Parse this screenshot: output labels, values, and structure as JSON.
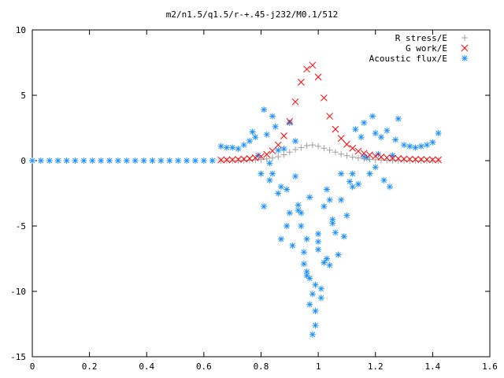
{
  "chart_data": {
    "type": "scatter",
    "title": "m2/n1.5/q1.5/r-+.45-j232/M0.1/512",
    "xlabel": "",
    "ylabel": "",
    "xlim": [
      0,
      1.6
    ],
    "ylim": [
      -15,
      10
    ],
    "xticks": [
      0,
      0.2,
      0.4,
      0.6,
      0.8,
      1,
      1.2,
      1.4,
      1.6
    ],
    "xtick_labels": [
      "0",
      "0.2",
      "0.4",
      "0.6",
      "0.8",
      "1",
      "1.2",
      "1.4",
      "1.6"
    ],
    "yticks": [
      -15,
      -10,
      -5,
      0,
      5,
      10
    ],
    "ytick_labels": [
      "-15",
      "-10",
      "-5",
      "0",
      "5",
      "10"
    ],
    "grid": false,
    "legend_position": "top-right",
    "series": [
      {
        "name": "R stress/E",
        "marker": "plus",
        "color": "#a0a0a0",
        "x": [
          0.66,
          0.68,
          0.7,
          0.72,
          0.74,
          0.76,
          0.78,
          0.8,
          0.82,
          0.84,
          0.86,
          0.88,
          0.9,
          0.92,
          0.94,
          0.96,
          0.98,
          1.0,
          1.02,
          1.04,
          1.06,
          1.08,
          1.1,
          1.12,
          1.14,
          1.16,
          1.18,
          1.2,
          1.22,
          1.24,
          1.26,
          1.28,
          1.3,
          1.32,
          1.34,
          1.36,
          1.38,
          1.4,
          1.42
        ],
        "y": [
          0.0,
          0.0,
          0.0,
          0.01,
          0.02,
          0.03,
          0.05,
          0.08,
          0.13,
          0.2,
          0.3,
          0.45,
          0.65,
          0.85,
          1.0,
          1.15,
          1.2,
          1.1,
          0.95,
          0.8,
          0.65,
          0.5,
          0.38,
          0.28,
          0.2,
          0.14,
          0.1,
          0.07,
          0.05,
          0.03,
          0.02,
          0.01,
          0.01,
          0.0,
          0.0,
          0.0,
          0.0,
          0.0,
          0.0
        ]
      },
      {
        "name": "G work/E",
        "marker": "cross",
        "color": "#ff0000",
        "x": [
          0.66,
          0.68,
          0.7,
          0.72,
          0.74,
          0.76,
          0.78,
          0.8,
          0.82,
          0.84,
          0.86,
          0.88,
          0.9,
          0.92,
          0.94,
          0.96,
          0.98,
          1.0,
          1.02,
          1.04,
          1.06,
          1.08,
          1.1,
          1.12,
          1.14,
          1.16,
          1.18,
          1.2,
          1.22,
          1.24,
          1.26,
          1.28,
          1.3,
          1.32,
          1.34,
          1.36,
          1.38,
          1.4,
          1.42
        ],
        "y": [
          0.05,
          0.06,
          0.07,
          0.09,
          0.12,
          0.16,
          0.22,
          0.32,
          0.48,
          0.75,
          1.2,
          1.9,
          3.0,
          4.5,
          6.0,
          7.0,
          7.3,
          6.4,
          4.8,
          3.4,
          2.4,
          1.7,
          1.25,
          0.95,
          0.72,
          0.56,
          0.44,
          0.35,
          0.28,
          0.23,
          0.19,
          0.16,
          0.13,
          0.11,
          0.1,
          0.09,
          0.08,
          0.07,
          0.06
        ]
      },
      {
        "name": "Acoustic flux/E",
        "marker": "star",
        "color": "#1e90ff",
        "x": [
          0.0,
          0.03,
          0.06,
          0.09,
          0.12,
          0.15,
          0.18,
          0.21,
          0.24,
          0.27,
          0.3,
          0.33,
          0.36,
          0.39,
          0.42,
          0.45,
          0.48,
          0.51,
          0.54,
          0.57,
          0.6,
          0.63,
          0.66,
          0.68,
          0.7,
          0.72,
          0.74,
          0.76,
          0.77,
          0.78,
          0.79,
          0.8,
          0.81,
          0.82,
          0.83,
          0.84,
          0.85,
          0.86,
          0.87,
          0.88,
          0.89,
          0.9,
          0.91,
          0.92,
          0.93,
          0.94,
          0.95,
          0.96,
          0.97,
          0.98,
          0.99,
          1.0,
          1.01,
          1.02,
          1.03,
          1.04,
          1.05,
          1.06,
          1.07,
          1.08,
          1.09,
          1.1,
          1.11,
          1.12,
          1.13,
          1.14,
          1.15,
          1.16,
          1.17,
          1.18,
          1.19,
          1.2,
          1.21,
          1.22,
          1.23,
          1.24,
          1.25,
          1.26,
          1.27,
          1.28,
          1.3,
          1.32,
          1.34,
          1.36,
          1.38,
          1.4,
          1.42,
          0.81,
          0.84,
          0.87,
          0.9,
          0.93,
          0.95,
          0.97,
          0.99,
          1.01,
          1.03,
          1.05,
          0.83,
          0.86,
          0.89,
          0.92,
          0.96,
          1.0,
          1.04,
          1.08,
          1.12,
          1.16,
          1.2,
          0.98,
          0.96,
          0.99,
          1.02,
          0.94,
          0.97,
          1.0
        ],
        "y": [
          0,
          0,
          0,
          0,
          0,
          0,
          0,
          0,
          0,
          0,
          0,
          0,
          0,
          0,
          0,
          0,
          0,
          0,
          0,
          0,
          0,
          0,
          1.1,
          1.0,
          1.0,
          0.9,
          1.2,
          1.5,
          2.2,
          1.8,
          0.4,
          -1.0,
          3.9,
          2.0,
          -0.2,
          3.4,
          2.6,
          -2.5,
          -6.0,
          0.9,
          -5.0,
          2.9,
          -6.5,
          1.5,
          -3.4,
          -5.0,
          -7.9,
          -6.0,
          -11.0,
          -13.3,
          -9.5,
          -6.2,
          -10.5,
          -3.5,
          -2.2,
          -8.0,
          -4.8,
          -5.5,
          -7.2,
          -3.0,
          -5.8,
          -4.2,
          -1.6,
          -1.0,
          2.4,
          -1.8,
          1.8,
          2.9,
          0.2,
          -1.0,
          3.4,
          2.1,
          0.5,
          1.8,
          -1.5,
          2.3,
          -2.0,
          0.4,
          1.6,
          3.2,
          1.2,
          1.1,
          1.0,
          1.1,
          1.2,
          1.4,
          2.1,
          -3.5,
          -1.0,
          -2.0,
          -4.0,
          -3.8,
          -7.0,
          -9.0,
          -12.6,
          -9.8,
          -7.5,
          -4.5,
          -1.5,
          0.8,
          -2.2,
          -1.2,
          -8.5,
          -6.8,
          -3.0,
          -1.0,
          -2.0,
          0.3,
          -0.5,
          -10.2,
          -8.8,
          -11.5,
          -7.8,
          -4.0,
          -2.8,
          -5.6
        ]
      }
    ]
  }
}
